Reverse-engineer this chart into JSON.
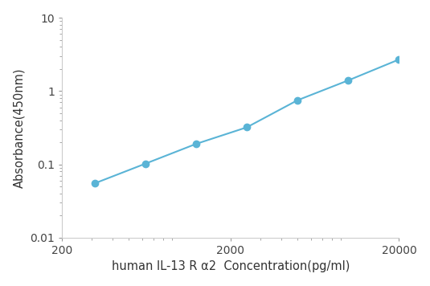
{
  "x": [
    313,
    625,
    1250,
    2500,
    5000,
    10000,
    20000
  ],
  "y": [
    0.055,
    0.102,
    0.19,
    0.32,
    0.75,
    1.4,
    2.7
  ],
  "line_color": "#5ab4d6",
  "marker_color": "#5ab4d6",
  "marker_size": 6,
  "line_width": 1.5,
  "xlabel": "human IL-13 R α2  Concentration(pg/ml)",
  "ylabel": "Absorbance(450nm)",
  "xlim": [
    200,
    20000
  ],
  "ylim": [
    0.01,
    10
  ],
  "xticks": [
    200,
    2000,
    20000
  ],
  "yticks": [
    0.01,
    0.1,
    1,
    10
  ],
  "ytick_labels": [
    "0.01",
    "0.1",
    "1",
    "10"
  ],
  "xlabel_fontsize": 10.5,
  "ylabel_fontsize": 10.5,
  "tick_fontsize": 10,
  "background_color": "#ffffff",
  "spine_color": "#cccccc",
  "tick_color": "#999999"
}
